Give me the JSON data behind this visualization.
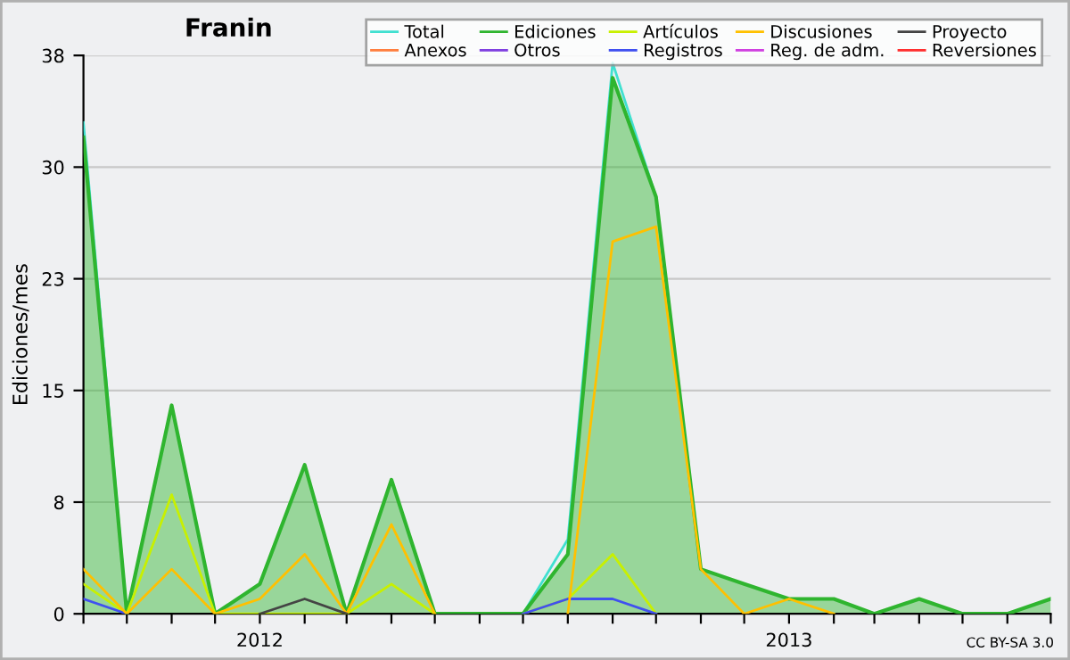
{
  "chart_data": {
    "type": "line",
    "title": "Franin",
    "ylabel": "Ediciones/mes",
    "x": [
      "2011-09",
      "2011-10",
      "2011-11",
      "2011-12",
      "2012-01",
      "2012-02",
      "2012-03",
      "2012-04",
      "2012-05",
      "2012-06",
      "2012-07",
      "2012-08",
      "2012-09",
      "2012-10",
      "2012-11",
      "2012-12",
      "2013-01",
      "2013-02",
      "2013-03",
      "2013-04",
      "2013-05",
      "2013-06",
      "2013-07"
    ],
    "xlim": [
      "2011-09",
      "2013-07"
    ],
    "xticks": [
      {
        "value": "2011-09",
        "label": null
      },
      {
        "value": "2011-10",
        "label": null
      },
      {
        "value": "2011-11",
        "label": null
      },
      {
        "value": "2011-12",
        "label": null
      },
      {
        "value": "2012-01",
        "label": "2012"
      },
      {
        "value": "2012-02",
        "label": null
      },
      {
        "value": "2012-03",
        "label": null
      },
      {
        "value": "2012-04",
        "label": null
      },
      {
        "value": "2012-05",
        "label": null
      },
      {
        "value": "2012-06",
        "label": null
      },
      {
        "value": "2012-07",
        "label": null
      },
      {
        "value": "2012-08",
        "label": null
      },
      {
        "value": "2012-09",
        "label": null
      },
      {
        "value": "2012-10",
        "label": null
      },
      {
        "value": "2012-11",
        "label": null
      },
      {
        "value": "2012-12",
        "label": null
      },
      {
        "value": "2013-01",
        "label": "2013"
      },
      {
        "value": "2013-02",
        "label": null
      },
      {
        "value": "2013-03",
        "label": null
      },
      {
        "value": "2013-04",
        "label": null
      },
      {
        "value": "2013-05",
        "label": null
      },
      {
        "value": "2013-06",
        "label": null
      },
      {
        "value": "2013-07",
        "label": null
      }
    ],
    "ylim": [
      0,
      37.5
    ],
    "yticks": [
      0,
      {
        "value": 7.5,
        "label": "8"
      },
      15,
      {
        "value": 22.5,
        "label": "23"
      },
      30,
      {
        "value": 37.5,
        "label": "38"
      }
    ],
    "grid": "y",
    "legend": "top right",
    "annotations": [
      "CC BY-SA 3.0"
    ],
    "series": [
      {
        "name": "Total",
        "color": "#40e0d0",
        "values": [
          33,
          0,
          null,
          null,
          null,
          null,
          null,
          null,
          null,
          null,
          0,
          5,
          37,
          28,
          null,
          null,
          null,
          null,
          null,
          null,
          null,
          null,
          null
        ]
      },
      {
        "name": "Anexos",
        "color": "#ff7f3f",
        "values": [
          null,
          null,
          null,
          null,
          null,
          null,
          null,
          null,
          null,
          null,
          null,
          null,
          null,
          null,
          null,
          null,
          null,
          null,
          null,
          null,
          null,
          null,
          null
        ]
      },
      {
        "name": "Ediciones",
        "type": "area",
        "color": "#2fb52f",
        "values": [
          32,
          0,
          14,
          0,
          2,
          10,
          0,
          9,
          0,
          0,
          0,
          4,
          36,
          28,
          3,
          2,
          1,
          1,
          0,
          1,
          0,
          0,
          1
        ]
      },
      {
        "name": "Otros",
        "color": "#8040e0",
        "values": [
          null,
          null,
          null,
          null,
          null,
          null,
          null,
          null,
          null,
          null,
          null,
          null,
          null,
          null,
          null,
          null,
          null,
          null,
          null,
          null,
          null,
          null,
          null
        ]
      },
      {
        "name": "Artículos",
        "color": "#c8f000",
        "values": [
          2,
          0,
          8,
          0,
          0,
          0,
          0,
          2,
          0,
          null,
          0,
          1,
          4,
          0,
          null,
          null,
          null,
          null,
          null,
          null,
          null,
          null,
          null
        ]
      },
      {
        "name": "Registros",
        "color": "#4050f0",
        "values": [
          1,
          0,
          null,
          null,
          null,
          null,
          null,
          null,
          null,
          null,
          0,
          1,
          1,
          0,
          null,
          null,
          null,
          null,
          null,
          null,
          null,
          null,
          null
        ]
      },
      {
        "name": "Discusiones",
        "color": "#ffc000",
        "values": [
          3,
          0,
          3,
          0,
          1,
          4,
          0,
          6,
          0,
          null,
          null,
          0,
          25,
          26,
          3,
          0,
          1,
          0,
          null,
          null,
          null,
          null,
          null
        ]
      },
      {
        "name": "Reg. de adm.",
        "color": "#d040e0",
        "values": [
          null,
          null,
          null,
          null,
          null,
          null,
          null,
          null,
          null,
          null,
          null,
          null,
          null,
          null,
          null,
          null,
          null,
          null,
          null,
          null,
          null,
          null,
          null
        ]
      },
      {
        "name": "Proyecto",
        "color": "#444444",
        "values": [
          null,
          null,
          null,
          null,
          0,
          1,
          0,
          null,
          null,
          null,
          null,
          null,
          null,
          null,
          null,
          null,
          null,
          null,
          null,
          null,
          null,
          null,
          null
        ]
      },
      {
        "name": "Reversiones",
        "color": "#ff3030",
        "values": [
          null,
          null,
          null,
          null,
          null,
          null,
          null,
          null,
          null,
          null,
          null,
          null,
          null,
          null,
          null,
          null,
          null,
          null,
          null,
          null,
          null,
          null,
          null
        ]
      }
    ]
  }
}
